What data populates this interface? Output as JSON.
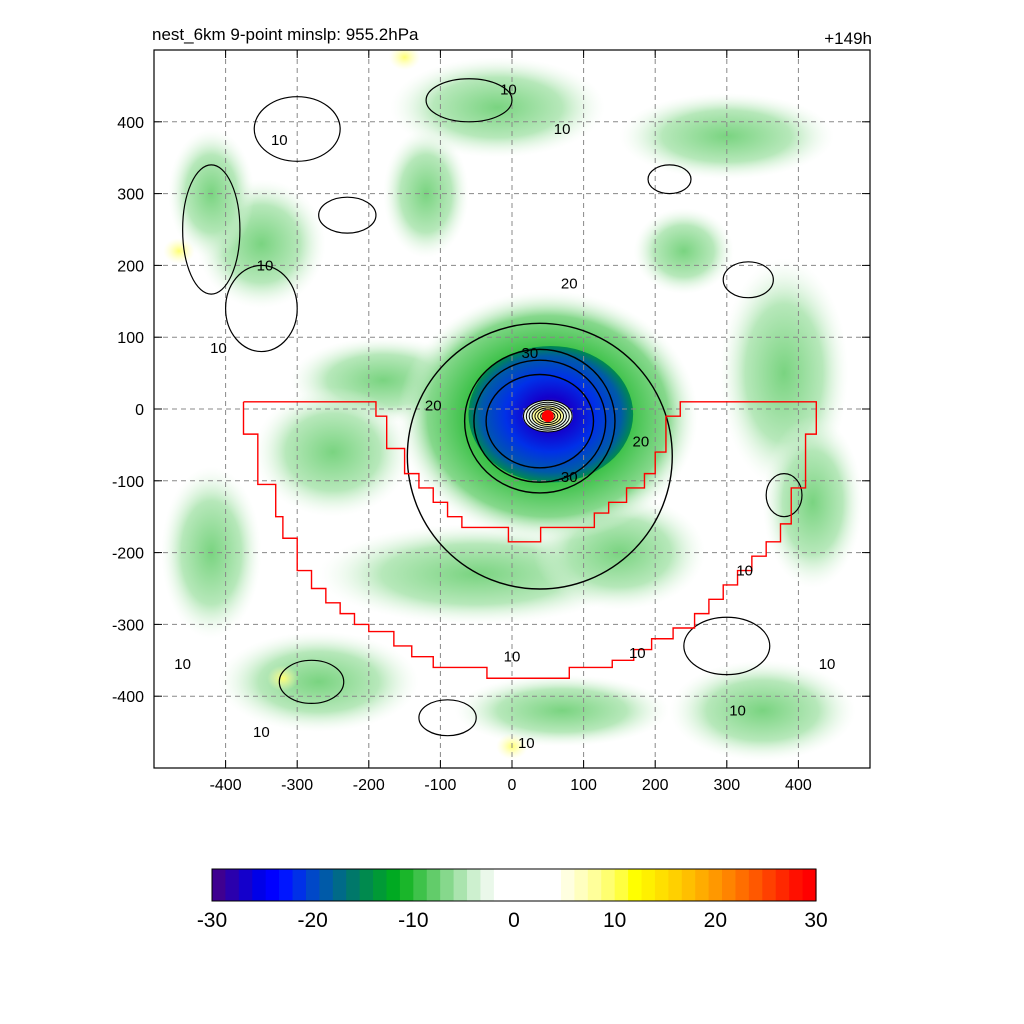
{
  "chart_data": {
    "type": "heatmap",
    "title_left": "nest_6km  9-point minslp: 955.2hPa",
    "title_right": "+149h",
    "xlim": [
      -500,
      500
    ],
    "ylim": [
      -500,
      500
    ],
    "x_ticks": [
      -400,
      -300,
      -200,
      -100,
      0,
      100,
      200,
      300,
      400
    ],
    "y_ticks": [
      400,
      300,
      200,
      100,
      0,
      -100,
      -200,
      -300,
      -400
    ],
    "grid": true,
    "storm_center": [
      50,
      -10
    ],
    "contour_levels": [
      10,
      20,
      30
    ],
    "contour_labels": [
      {
        "text": "10",
        "x": -325,
        "y": 375
      },
      {
        "text": "10",
        "x": -345,
        "y": 200
      },
      {
        "text": "10",
        "x": -410,
        "y": 85
      },
      {
        "text": "10",
        "x": -5,
        "y": 445
      },
      {
        "text": "10",
        "x": 70,
        "y": 390
      },
      {
        "text": "20",
        "x": 80,
        "y": 175
      },
      {
        "text": "30",
        "x": 25,
        "y": 78
      },
      {
        "text": "20",
        "x": -110,
        "y": 5
      },
      {
        "text": "20",
        "x": 180,
        "y": -45
      },
      {
        "text": "30",
        "x": 80,
        "y": -95
      },
      {
        "text": "10",
        "x": 0,
        "y": -345
      },
      {
        "text": "10",
        "x": 175,
        "y": -340
      },
      {
        "text": "10",
        "x": 325,
        "y": -225
      },
      {
        "text": "10",
        "x": -460,
        "y": -355
      },
      {
        "text": "10",
        "x": -350,
        "y": -450
      },
      {
        "text": "10",
        "x": 440,
        "y": -355
      },
      {
        "text": "10",
        "x": 315,
        "y": -420
      },
      {
        "text": "10",
        "x": 20,
        "y": -465
      }
    ],
    "red_boundary": [
      [
        -375,
        10
      ],
      [
        -190,
        10
      ],
      [
        -190,
        -10
      ],
      [
        -175,
        -10
      ],
      [
        -175,
        -55
      ],
      [
        -150,
        -55
      ],
      [
        -150,
        -90
      ],
      [
        -130,
        -90
      ],
      [
        -130,
        -110
      ],
      [
        -110,
        -110
      ],
      [
        -110,
        -130
      ],
      [
        -90,
        -130
      ],
      [
        -90,
        -150
      ],
      [
        -70,
        -150
      ],
      [
        -70,
        -165
      ],
      [
        -5,
        -165
      ],
      [
        -5,
        -185
      ],
      [
        40,
        -185
      ],
      [
        40,
        -165
      ],
      [
        115,
        -165
      ],
      [
        115,
        -145
      ],
      [
        135,
        -145
      ],
      [
        135,
        -130
      ],
      [
        160,
        -130
      ],
      [
        160,
        -110
      ],
      [
        185,
        -110
      ],
      [
        185,
        -90
      ],
      [
        200,
        -90
      ],
      [
        200,
        -60
      ],
      [
        215,
        -60
      ],
      [
        215,
        -10
      ],
      [
        235,
        -10
      ],
      [
        235,
        10
      ],
      [
        425,
        10
      ],
      [
        425,
        -35
      ],
      [
        410,
        -35
      ],
      [
        410,
        -110
      ],
      [
        390,
        -110
      ],
      [
        390,
        -160
      ],
      [
        375,
        -160
      ],
      [
        375,
        -185
      ],
      [
        355,
        -185
      ],
      [
        355,
        -205
      ],
      [
        335,
        -205
      ],
      [
        335,
        -225
      ],
      [
        315,
        -225
      ],
      [
        315,
        -245
      ],
      [
        295,
        -245
      ],
      [
        295,
        -265
      ],
      [
        275,
        -265
      ],
      [
        275,
        -285
      ],
      [
        255,
        -285
      ],
      [
        255,
        -305
      ],
      [
        225,
        -305
      ],
      [
        225,
        -320
      ],
      [
        195,
        -320
      ],
      [
        195,
        -335
      ],
      [
        170,
        -335
      ],
      [
        170,
        -350
      ],
      [
        140,
        -350
      ],
      [
        140,
        -360
      ],
      [
        80,
        -360
      ],
      [
        80,
        -375
      ],
      [
        -35,
        -375
      ],
      [
        -35,
        -360
      ],
      [
        -110,
        -360
      ],
      [
        -110,
        -345
      ],
      [
        -140,
        -345
      ],
      [
        -140,
        -330
      ],
      [
        -165,
        -330
      ],
      [
        -165,
        -310
      ],
      [
        -200,
        -310
      ],
      [
        -200,
        -300
      ],
      [
        -220,
        -300
      ],
      [
        -220,
        -285
      ],
      [
        -240,
        -285
      ],
      [
        -240,
        -270
      ],
      [
        -260,
        -270
      ],
      [
        -260,
        -250
      ],
      [
        -280,
        -250
      ],
      [
        -280,
        -225
      ],
      [
        -300,
        -225
      ],
      [
        -300,
        -180
      ],
      [
        -320,
        -180
      ],
      [
        -320,
        -150
      ],
      [
        -330,
        -150
      ],
      [
        -330,
        -105
      ],
      [
        -355,
        -105
      ],
      [
        -355,
        -35
      ],
      [
        -375,
        -35
      ],
      [
        -375,
        10
      ]
    ],
    "colorbar": {
      "min": -30,
      "max": 30,
      "ticks": [
        "-30",
        "-20",
        "-10",
        "0",
        "10",
        "20",
        "30"
      ],
      "colors": [
        "#3f0090",
        "#2a00ad",
        "#1400cb",
        "#0000e8",
        "#0000ff",
        "#0016ff",
        "#0030e8",
        "#0048c8",
        "#005aa8",
        "#006a88",
        "#00786a",
        "#008a4e",
        "#009a36",
        "#00aa22",
        "#1ab62a",
        "#3ec24a",
        "#62cc6a",
        "#86d88c",
        "#aae4ae",
        "#cdf0cf",
        "#eaf8ea",
        "#ffffff",
        "#ffffff",
        "#ffffff",
        "#ffffff",
        "#ffffff",
        "#ffffe0",
        "#ffffbf",
        "#ffff9a",
        "#ffff70",
        "#ffff40",
        "#ffff00",
        "#fff000",
        "#ffe000",
        "#ffd000",
        "#ffbf00",
        "#ffac00",
        "#ff9800",
        "#ff8400",
        "#ff6e00",
        "#ff5800",
        "#ff4000",
        "#ff2800",
        "#ff1000",
        "#ff0000"
      ]
    }
  }
}
